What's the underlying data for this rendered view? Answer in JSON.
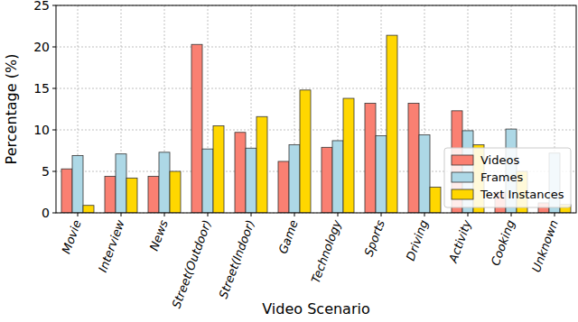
{
  "chart_data": {
    "type": "bar",
    "x_label": "Video Scenario",
    "y_label": "Percentage (%)",
    "categories": [
      "Movie",
      "Interview",
      "News",
      "Street(Outdoor)",
      "Street(Indoor)",
      "Game",
      "Technology",
      "Sports",
      "Driving",
      "Activity",
      "Cooking",
      "Unknown"
    ],
    "series": [
      {
        "name": "Videos",
        "color": "#fa8072",
        "values": [
          5.3,
          4.4,
          4.4,
          20.3,
          9.7,
          6.2,
          7.9,
          13.2,
          13.2,
          12.3,
          2.5,
          1.2
        ]
      },
      {
        "name": "Frames",
        "color": "#add8e6",
        "values": [
          6.9,
          7.1,
          7.3,
          7.7,
          7.8,
          8.2,
          8.7,
          9.3,
          9.4,
          9.9,
          10.1,
          7.2
        ]
      },
      {
        "name": "Text Instances",
        "color": "#ffd700",
        "values": [
          0.9,
          4.2,
          5.0,
          10.5,
          11.6,
          14.8,
          13.8,
          21.4,
          3.1,
          8.2,
          5.0,
          1.0
        ]
      }
    ],
    "ylim": [
      0,
      25
    ],
    "yticks": [
      0,
      5,
      10,
      15,
      20,
      25
    ],
    "grid": true,
    "legend": "right"
  }
}
